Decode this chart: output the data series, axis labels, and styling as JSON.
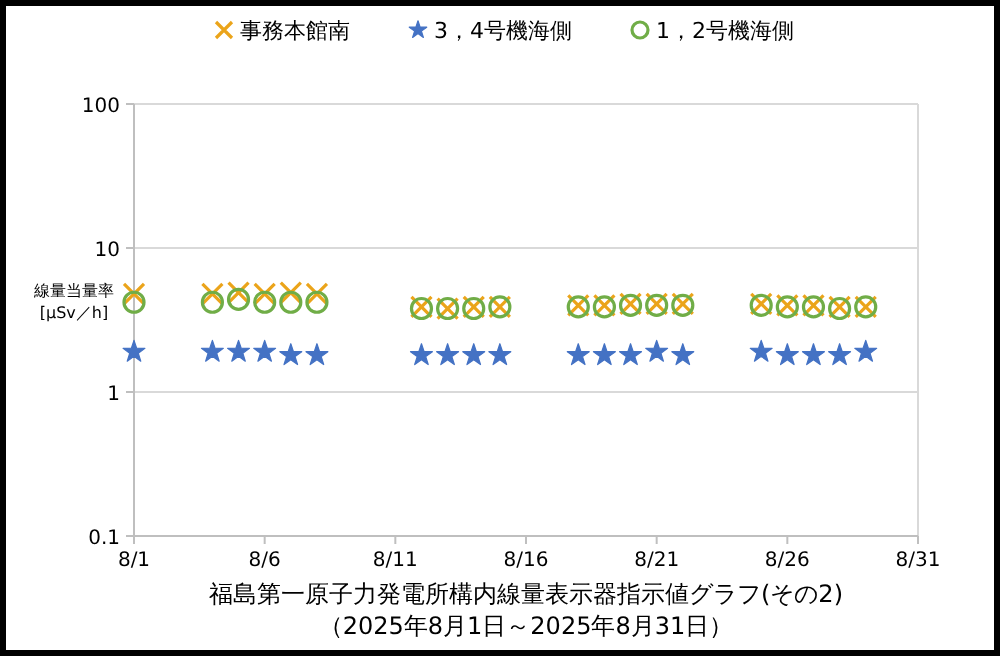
{
  "chart_data": {
    "type": "scatter",
    "title": "福島第一原子力発電所構内線量表示器指示値グラフ(その2)",
    "subtitle": "（2025年8月1日～2025年8月31日）",
    "ylabel": "線量当量率\n[μSv／h]",
    "x": [
      "2025-08-01",
      "2025-08-04",
      "2025-08-05",
      "2025-08-06",
      "2025-08-07",
      "2025-08-08",
      "2025-08-12",
      "2025-08-13",
      "2025-08-14",
      "2025-08-15",
      "2025-08-18",
      "2025-08-19",
      "2025-08-20",
      "2025-08-21",
      "2025-08-22",
      "2025-08-25",
      "2025-08-26",
      "2025-08-27",
      "2025-08-28",
      "2025-08-29"
    ],
    "series": [
      {
        "name": "事務本館南",
        "color": "#eba41a",
        "marker": "cross",
        "values": [
          4.8,
          4.8,
          4.9,
          4.8,
          4.9,
          4.8,
          3.9,
          3.8,
          3.9,
          3.9,
          4.0,
          4.0,
          4.1,
          4.1,
          4.1,
          4.1,
          4.0,
          4.0,
          3.9,
          3.9
        ]
      },
      {
        "name": "3，4号機海側",
        "color": "#4472c4",
        "marker": "star",
        "values": [
          1.9,
          1.9,
          1.9,
          1.9,
          1.8,
          1.8,
          1.8,
          1.8,
          1.8,
          1.8,
          1.8,
          1.8,
          1.8,
          1.9,
          1.8,
          1.9,
          1.8,
          1.8,
          1.8,
          1.9
        ]
      },
      {
        "name": "1，2号機海側",
        "color": "#70ad47",
        "marker": "circle",
        "values": [
          4.2,
          4.2,
          4.4,
          4.2,
          4.2,
          4.2,
          3.8,
          3.8,
          3.8,
          3.9,
          3.9,
          3.9,
          4.0,
          4.0,
          4.0,
          4.0,
          3.9,
          3.9,
          3.8,
          3.9
        ]
      }
    ],
    "log": true,
    "ylim": [
      0.1,
      100
    ],
    "yticks": [
      0.1,
      1,
      10,
      100
    ],
    "xlim": [
      "2025-08-01",
      "2025-08-31"
    ],
    "xticks": [
      {
        "value": "2025-08-01",
        "label": "8/1"
      },
      {
        "value": "2025-08-06",
        "label": "8/6"
      },
      {
        "value": "2025-08-11",
        "label": "8/11"
      },
      {
        "value": "2025-08-16",
        "label": "8/16"
      },
      {
        "value": "2025-08-21",
        "label": "8/21"
      },
      {
        "value": "2025-08-26",
        "label": "8/26"
      },
      {
        "value": "2025-08-31",
        "label": "8/31"
      }
    ],
    "grid": "y",
    "legend": "top"
  }
}
